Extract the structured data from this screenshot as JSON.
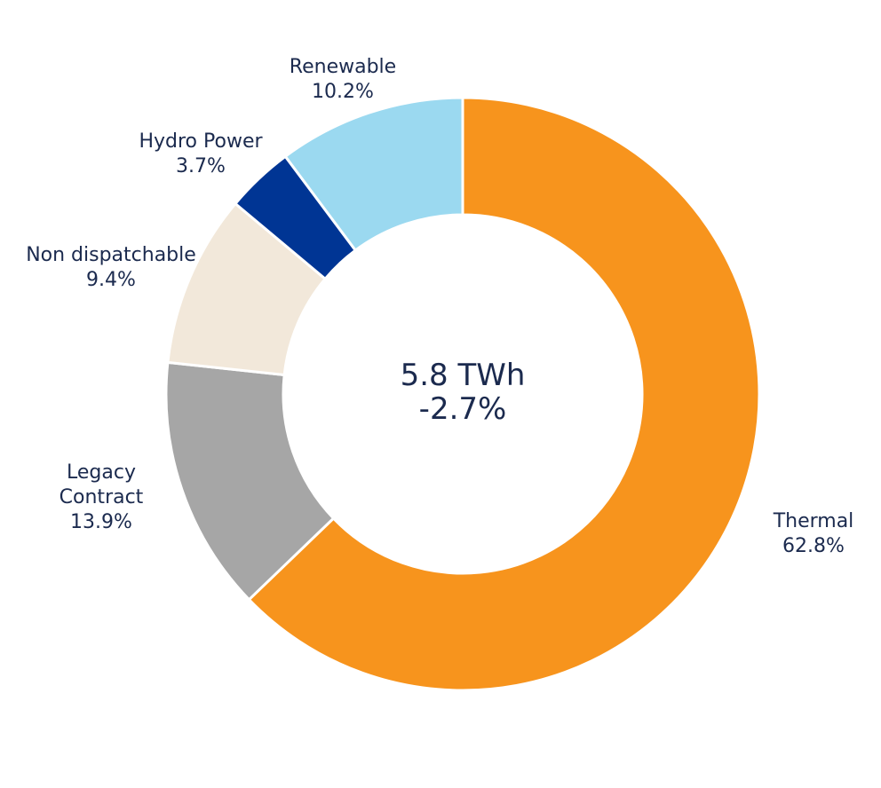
{
  "chart_data": {
    "type": "pie",
    "donut": true,
    "center_text": [
      "5.8 TWh",
      "-2.7%"
    ],
    "slices": [
      {
        "name": "Thermal",
        "value": 62.8,
        "label_lines": [
          "Thermal"
        ],
        "value_label": "62.8%",
        "color": "#f7941d"
      },
      {
        "name": "Legacy Contract",
        "value": 13.9,
        "label_lines": [
          "Legacy",
          "Contract"
        ],
        "value_label": "13.9%",
        "color": "#a6a6a6"
      },
      {
        "name": "Non dispatchable",
        "value": 9.4,
        "label_lines": [
          "Non dispatchable"
        ],
        "value_label": "9.4%",
        "color": "#f2e8da"
      },
      {
        "name": "Hydro Power",
        "value": 3.7,
        "label_lines": [
          "Hydro Power"
        ],
        "value_label": "3.7%",
        "color": "#003594"
      },
      {
        "name": "Renewable",
        "value": 10.2,
        "label_lines": [
          "Renewable"
        ],
        "value_label": "10.2%",
        "color": "#9bd9f0"
      }
    ],
    "start": "12 o'clock",
    "direction": "clockwise",
    "legend": "none"
  }
}
